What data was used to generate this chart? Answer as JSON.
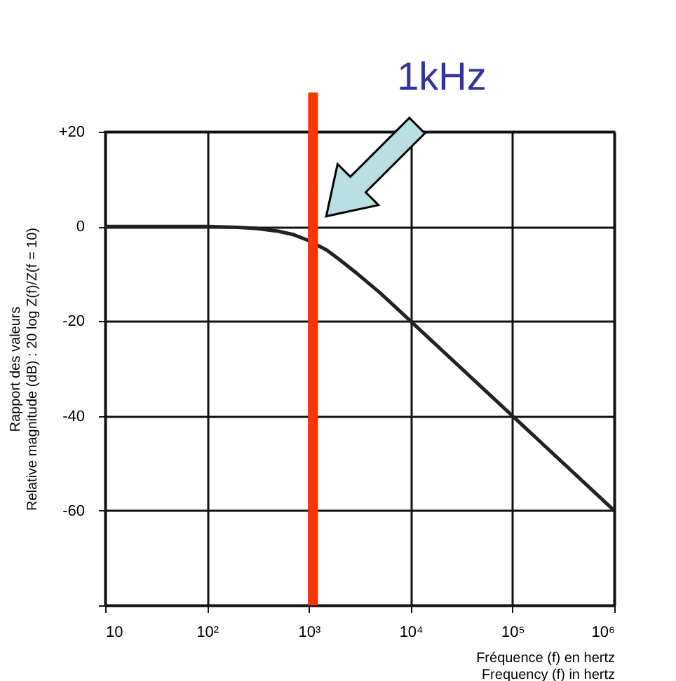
{
  "chart_data": {
    "type": "line",
    "ylabel": "Rapport des valeurs\nRelative magnitude (dB) : 20 log Z(f)/Z(f = 10)",
    "xlabel": "Fréquence (f) en hertz\nFrequency (f) in hertz",
    "log": "x",
    "x": [
      10,
      50,
      100,
      200,
      300,
      500,
      700,
      1000,
      1500,
      2000,
      3000,
      5000,
      10000,
      100000,
      1000000
    ],
    "series": [
      {
        "color": "#222222",
        "values": [
          0,
          0,
          0,
          -0.2,
          -0.4,
          -1,
          -1.7,
          -3,
          -5,
          -7,
          -10,
          -14,
          -20,
          -40,
          -60
        ]
      }
    ],
    "xlim": [
      10,
      1000000
    ],
    "xticks": [
      {
        "value": 10,
        "label": "10"
      },
      {
        "value": 100,
        "label": "10²"
      },
      {
        "value": 1000,
        "label": "10³"
      },
      {
        "value": 10000,
        "label": "10⁴"
      },
      {
        "value": 100000,
        "label": "10⁵"
      },
      {
        "value": 1000000,
        "label": "10⁶"
      }
    ],
    "ylim": [
      -80,
      20
    ],
    "yticks": [
      {
        "value": 20,
        "label": "+20"
      },
      0,
      -20,
      -40,
      -60,
      {
        "value": -80,
        "label": null
      }
    ],
    "grid": true,
    "line_style": "solid",
    "marker": "none",
    "ref_lines": [
      {
        "axis": "x",
        "value": 1100,
        "label": "1kHz",
        "color": "#ff3300"
      }
    ]
  }
}
